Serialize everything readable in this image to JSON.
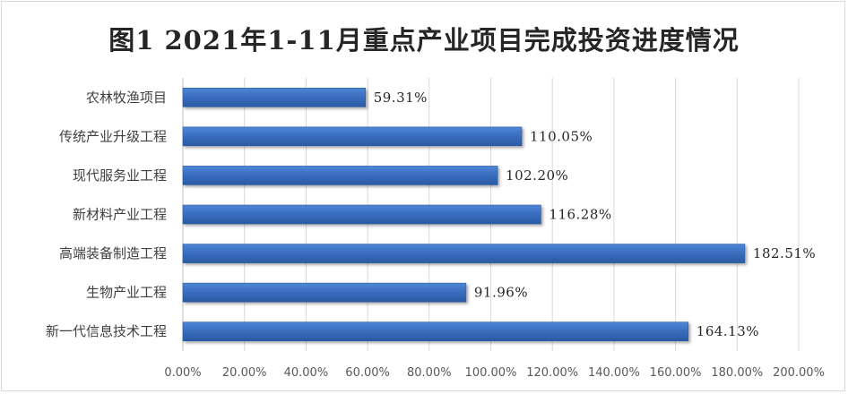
{
  "chart_data": {
    "type": "bar",
    "orientation": "horizontal",
    "title": "图1 2021年1-11月重点产业项目完成投资进度情况",
    "categories": [
      "农林牧渔项目",
      "传统产业升级工程",
      "现代服务业工程",
      "新材料产业工程",
      "高端装备制造工程",
      "生物产业工程",
      "新一代信息技术工程"
    ],
    "values": [
      59.31,
      110.05,
      102.2,
      116.28,
      182.51,
      91.96,
      164.13
    ],
    "data_labels": [
      "59.31%",
      "110.05%",
      "102.20%",
      "116.28%",
      "182.51%",
      "91.96%",
      "164.13%"
    ],
    "xticks": [
      "0.00%",
      "20.00%",
      "40.00%",
      "60.00%",
      "80.00%",
      "100.00%",
      "120.00%",
      "140.00%",
      "160.00%",
      "180.00%",
      "200.00%"
    ],
    "xlim": [
      0,
      200
    ],
    "grid": true,
    "legend": "none",
    "bar_color": "#3a6fbf"
  }
}
